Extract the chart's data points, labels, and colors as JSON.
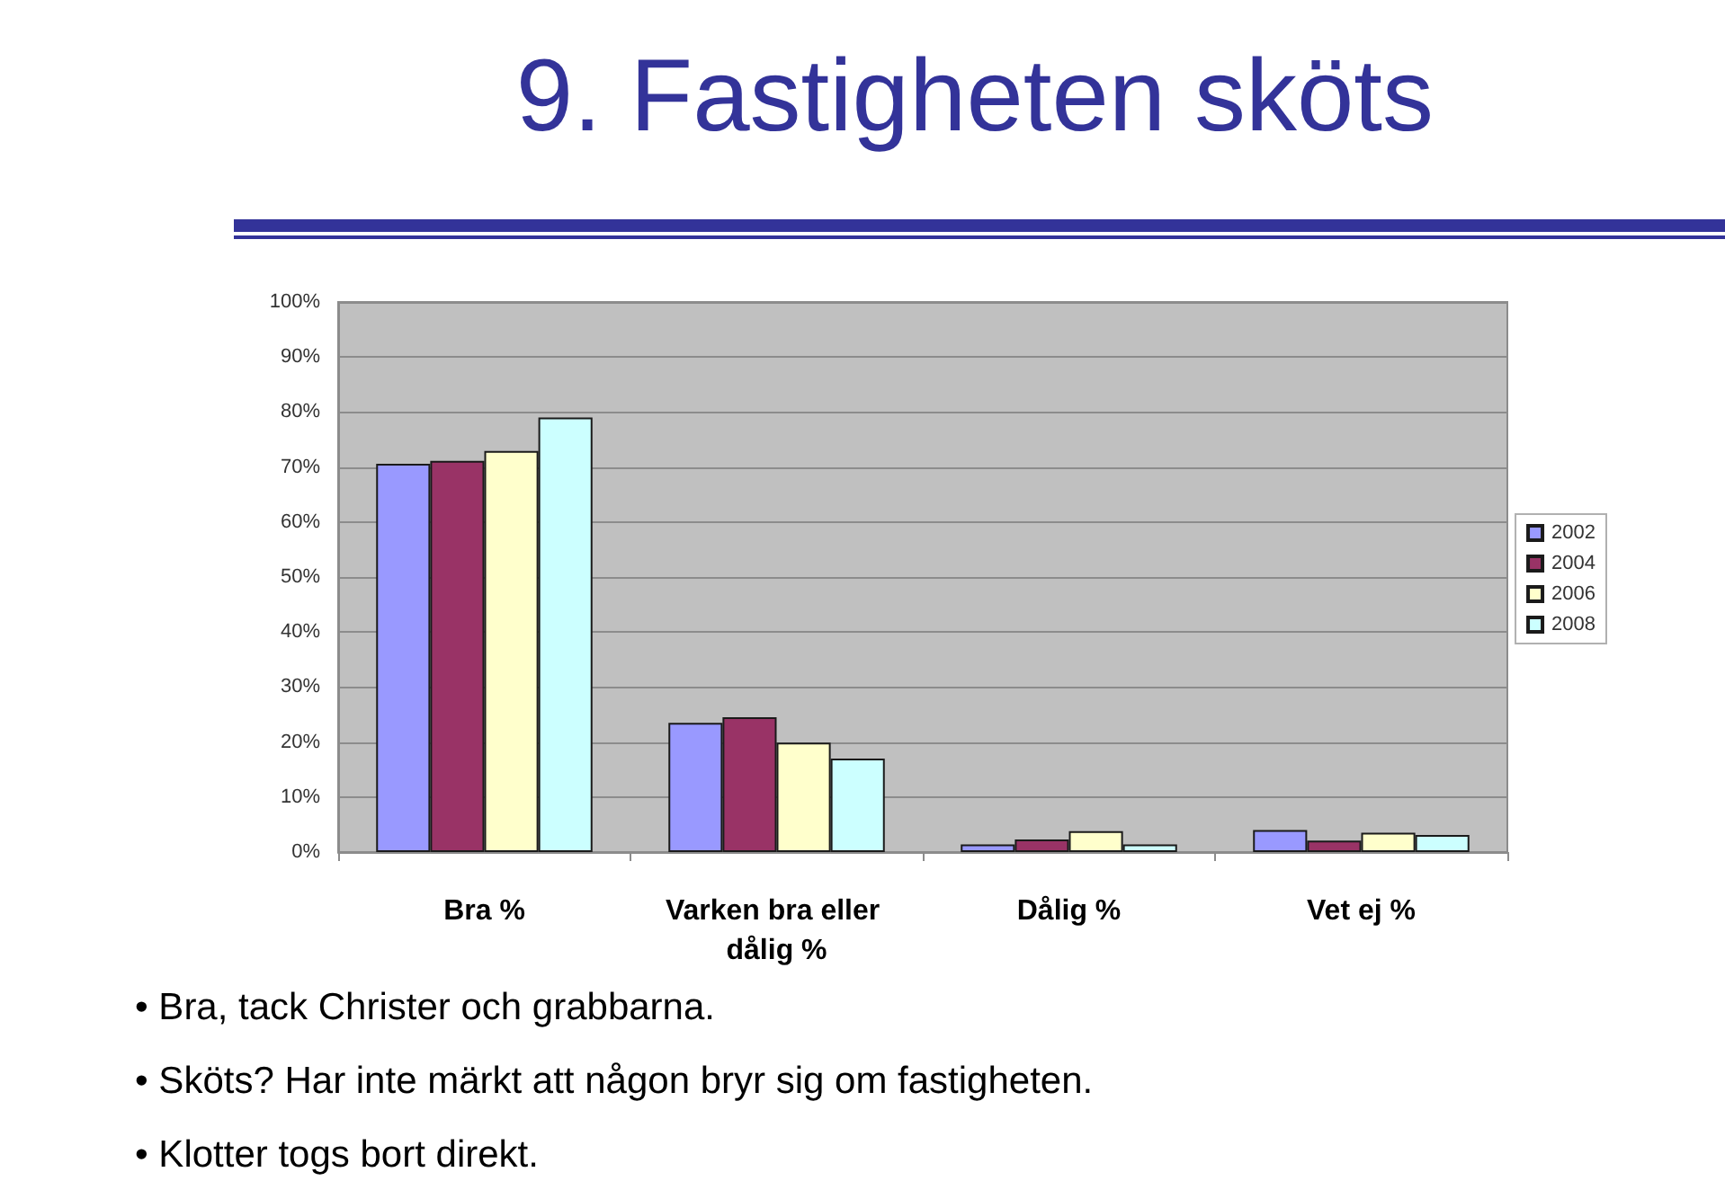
{
  "chart_data": {
    "type": "bar",
    "title": "9. Fastigheten sköts",
    "categories": [
      "Bra %",
      "Varken bra eller dålig %",
      "Dålig %",
      "Vet ej %"
    ],
    "series": [
      {
        "name": "2002",
        "color": "#9999ff",
        "values": [
          70.6,
          23.5,
          1.4,
          4.0
        ]
      },
      {
        "name": "2004",
        "color": "#993366",
        "values": [
          71.1,
          24.5,
          2.3,
          2.1
        ]
      },
      {
        "name": "2006",
        "color": "#ffffcc",
        "values": [
          72.9,
          19.9,
          3.8,
          3.5
        ]
      },
      {
        "name": "2008",
        "color": "#ccffff",
        "values": [
          79.0,
          17.0,
          1.4,
          3.1
        ]
      }
    ],
    "ylim": [
      0,
      100
    ],
    "yticks": [
      {
        "value": 0,
        "label": "0%"
      },
      {
        "value": 10,
        "label": "10%"
      },
      {
        "value": 20,
        "label": "20%"
      },
      {
        "value": 30,
        "label": "30%"
      },
      {
        "value": 40,
        "label": "40%"
      },
      {
        "value": 50,
        "label": "50%"
      },
      {
        "value": 60,
        "label": "60%"
      },
      {
        "value": 70,
        "label": "70%"
      },
      {
        "value": 80,
        "label": "80%"
      },
      {
        "value": 90,
        "label": "90%"
      },
      {
        "value": 100,
        "label": "100%"
      }
    ],
    "grid": "y",
    "legend": "right",
    "annotations": [
      "• Bra, tack Christer och grabbarna.",
      "• Sköts? Har inte märkt att någon bryr sig om fastigheten.",
      "• Klotter togs bort direkt."
    ]
  }
}
